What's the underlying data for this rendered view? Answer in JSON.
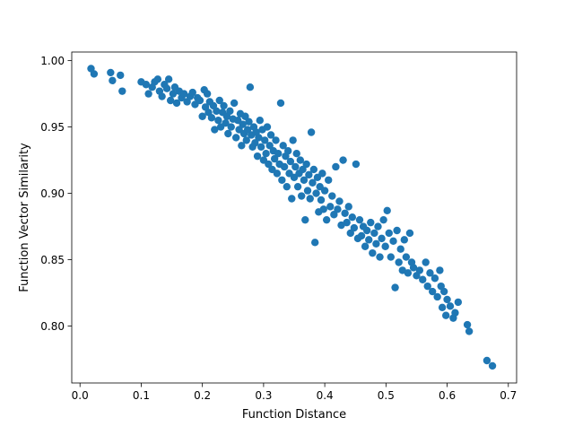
{
  "chart_data": {
    "type": "scatter",
    "title": "",
    "xlabel": "Function Distance",
    "ylabel": "Function Vector Similarity",
    "xlim": [
      -0.0135,
      0.7135
    ],
    "ylim": [
      0.7571,
      1.0065
    ],
    "xticks": [
      0.0,
      0.1,
      0.2,
      0.3,
      0.4,
      0.5,
      0.6,
      0.7
    ],
    "xtick_labels": [
      "0.0",
      "0.1",
      "0.2",
      "0.3",
      "0.4",
      "0.5",
      "0.6",
      "0.7"
    ],
    "yticks": [
      0.8,
      0.85,
      0.9,
      0.95,
      1.0
    ],
    "ytick_labels": [
      "0.80",
      "0.85",
      "0.90",
      "0.95",
      "1.00"
    ],
    "grid": false,
    "legend": "none",
    "marker_color": "#1f77b4",
    "series": [
      {
        "values_xy": [
          [
            0.018,
            0.994
          ],
          [
            0.023,
            0.99
          ],
          [
            0.05,
            0.991
          ],
          [
            0.053,
            0.985
          ],
          [
            0.066,
            0.989
          ],
          [
            0.069,
            0.977
          ],
          [
            0.1,
            0.984
          ],
          [
            0.108,
            0.982
          ],
          [
            0.112,
            0.975
          ],
          [
            0.118,
            0.98
          ],
          [
            0.122,
            0.984
          ],
          [
            0.127,
            0.986
          ],
          [
            0.13,
            0.977
          ],
          [
            0.134,
            0.973
          ],
          [
            0.138,
            0.982
          ],
          [
            0.142,
            0.979
          ],
          [
            0.145,
            0.986
          ],
          [
            0.148,
            0.97
          ],
          [
            0.152,
            0.975
          ],
          [
            0.155,
            0.98
          ],
          [
            0.158,
            0.968
          ],
          [
            0.162,
            0.977
          ],
          [
            0.166,
            0.972
          ],
          [
            0.17,
            0.975
          ],
          [
            0.175,
            0.969
          ],
          [
            0.18,
            0.973
          ],
          [
            0.184,
            0.976
          ],
          [
            0.188,
            0.967
          ],
          [
            0.192,
            0.972
          ],
          [
            0.196,
            0.97
          ],
          [
            0.2,
            0.958
          ],
          [
            0.203,
            0.978
          ],
          [
            0.205,
            0.965
          ],
          [
            0.208,
            0.975
          ],
          [
            0.21,
            0.961
          ],
          [
            0.212,
            0.969
          ],
          [
            0.215,
            0.957
          ],
          [
            0.218,
            0.966
          ],
          [
            0.22,
            0.948
          ],
          [
            0.223,
            0.962
          ],
          [
            0.226,
            0.955
          ],
          [
            0.228,
            0.97
          ],
          [
            0.23,
            0.95
          ],
          [
            0.233,
            0.961
          ],
          [
            0.235,
            0.966
          ],
          [
            0.238,
            0.953
          ],
          [
            0.24,
            0.958
          ],
          [
            0.242,
            0.945
          ],
          [
            0.245,
            0.962
          ],
          [
            0.247,
            0.95
          ],
          [
            0.25,
            0.956
          ],
          [
            0.252,
            0.968
          ],
          [
            0.255,
            0.942
          ],
          [
            0.258,
            0.955
          ],
          [
            0.26,
            0.948
          ],
          [
            0.262,
            0.96
          ],
          [
            0.264,
            0.936
          ],
          [
            0.266,
            0.952
          ],
          [
            0.268,
            0.945
          ],
          [
            0.27,
            0.958
          ],
          [
            0.272,
            0.94
          ],
          [
            0.274,
            0.948
          ],
          [
            0.276,
            0.954
          ],
          [
            0.278,
            0.98
          ],
          [
            0.28,
            0.944
          ],
          [
            0.282,
            0.935
          ],
          [
            0.284,
            0.95
          ],
          [
            0.286,
            0.938
          ],
          [
            0.288,
            0.946
          ],
          [
            0.29,
            0.928
          ],
          [
            0.292,
            0.942
          ],
          [
            0.294,
            0.955
          ],
          [
            0.296,
            0.935
          ],
          [
            0.298,
            0.948
          ],
          [
            0.3,
            0.925
          ],
          [
            0.302,
            0.94
          ],
          [
            0.304,
            0.93
          ],
          [
            0.306,
            0.95
          ],
          [
            0.308,
            0.922
          ],
          [
            0.31,
            0.936
          ],
          [
            0.312,
            0.944
          ],
          [
            0.314,
            0.918
          ],
          [
            0.316,
            0.932
          ],
          [
            0.318,
            0.926
          ],
          [
            0.32,
            0.94
          ],
          [
            0.322,
            0.915
          ],
          [
            0.324,
            0.93
          ],
          [
            0.326,
            0.922
          ],
          [
            0.328,
            0.968
          ],
          [
            0.33,
            0.91
          ],
          [
            0.332,
            0.936
          ],
          [
            0.334,
            0.92
          ],
          [
            0.336,
            0.928
          ],
          [
            0.338,
            0.905
          ],
          [
            0.34,
            0.932
          ],
          [
            0.342,
            0.915
          ],
          [
            0.344,
            0.924
          ],
          [
            0.346,
            0.896
          ],
          [
            0.348,
            0.94
          ],
          [
            0.35,
            0.912
          ],
          [
            0.352,
            0.92
          ],
          [
            0.354,
            0.93
          ],
          [
            0.356,
            0.905
          ],
          [
            0.358,
            0.915
          ],
          [
            0.36,
            0.925
          ],
          [
            0.362,
            0.898
          ],
          [
            0.364,
            0.918
          ],
          [
            0.366,
            0.91
          ],
          [
            0.368,
            0.88
          ],
          [
            0.37,
            0.922
          ],
          [
            0.372,
            0.902
          ],
          [
            0.374,
            0.914
          ],
          [
            0.376,
            0.896
          ],
          [
            0.378,
            0.946
          ],
          [
            0.38,
            0.908
          ],
          [
            0.382,
            0.918
          ],
          [
            0.384,
            0.863
          ],
          [
            0.386,
            0.9
          ],
          [
            0.388,
            0.912
          ],
          [
            0.39,
            0.886
          ],
          [
            0.392,
            0.905
          ],
          [
            0.394,
            0.895
          ],
          [
            0.396,
            0.915
          ],
          [
            0.398,
            0.888
          ],
          [
            0.4,
            0.902
          ],
          [
            0.403,
            0.88
          ],
          [
            0.406,
            0.91
          ],
          [
            0.409,
            0.89
          ],
          [
            0.412,
            0.898
          ],
          [
            0.415,
            0.884
          ],
          [
            0.418,
            0.92
          ],
          [
            0.421,
            0.888
          ],
          [
            0.424,
            0.894
          ],
          [
            0.427,
            0.876
          ],
          [
            0.43,
            0.925
          ],
          [
            0.433,
            0.885
          ],
          [
            0.436,
            0.878
          ],
          [
            0.439,
            0.89
          ],
          [
            0.442,
            0.87
          ],
          [
            0.445,
            0.882
          ],
          [
            0.448,
            0.874
          ],
          [
            0.451,
            0.922
          ],
          [
            0.454,
            0.866
          ],
          [
            0.457,
            0.88
          ],
          [
            0.46,
            0.868
          ],
          [
            0.463,
            0.875
          ],
          [
            0.466,
            0.86
          ],
          [
            0.469,
            0.872
          ],
          [
            0.472,
            0.865
          ],
          [
            0.475,
            0.878
          ],
          [
            0.478,
            0.855
          ],
          [
            0.481,
            0.87
          ],
          [
            0.484,
            0.862
          ],
          [
            0.487,
            0.875
          ],
          [
            0.49,
            0.852
          ],
          [
            0.493,
            0.866
          ],
          [
            0.496,
            0.88
          ],
          [
            0.499,
            0.86
          ],
          [
            0.502,
            0.887
          ],
          [
            0.505,
            0.87
          ],
          [
            0.508,
            0.852
          ],
          [
            0.512,
            0.864
          ],
          [
            0.515,
            0.829
          ],
          [
            0.518,
            0.872
          ],
          [
            0.521,
            0.848
          ],
          [
            0.524,
            0.858
          ],
          [
            0.527,
            0.842
          ],
          [
            0.53,
            0.865
          ],
          [
            0.533,
            0.852
          ],
          [
            0.536,
            0.84
          ],
          [
            0.539,
            0.87
          ],
          [
            0.542,
            0.848
          ],
          [
            0.545,
            0.844
          ],
          [
            0.55,
            0.838
          ],
          [
            0.555,
            0.842
          ],
          [
            0.56,
            0.835
          ],
          [
            0.565,
            0.848
          ],
          [
            0.568,
            0.83
          ],
          [
            0.572,
            0.84
          ],
          [
            0.576,
            0.826
          ],
          [
            0.58,
            0.836
          ],
          [
            0.584,
            0.822
          ],
          [
            0.588,
            0.842
          ],
          [
            0.59,
            0.83
          ],
          [
            0.592,
            0.814
          ],
          [
            0.595,
            0.826
          ],
          [
            0.598,
            0.808
          ],
          [
            0.6,
            0.82
          ],
          [
            0.605,
            0.815
          ],
          [
            0.61,
            0.806
          ],
          [
            0.613,
            0.81
          ],
          [
            0.618,
            0.818
          ],
          [
            0.633,
            0.801
          ],
          [
            0.636,
            0.796
          ],
          [
            0.665,
            0.774
          ],
          [
            0.674,
            0.77
          ]
        ]
      }
    ]
  }
}
